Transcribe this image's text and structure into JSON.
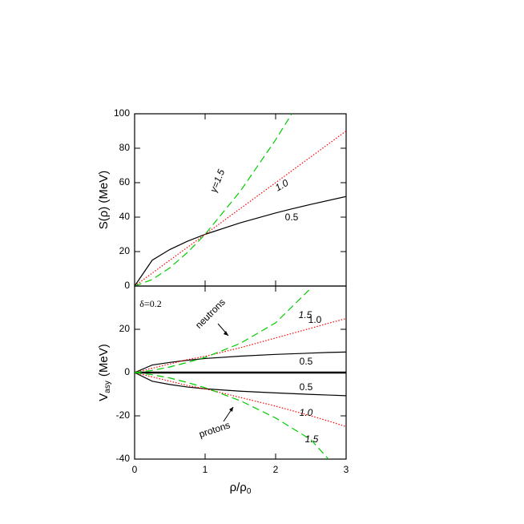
{
  "chart_data": [
    {
      "type": "line",
      "ylabel": "S(ρ) (MeV)",
      "x": [
        0,
        0.25,
        0.5,
        0.75,
        1,
        1.5,
        2,
        2.23,
        2.5,
        3
      ],
      "xlim": [
        0,
        3
      ],
      "xticks": [
        0,
        1,
        2,
        3
      ],
      "ylim": [
        0,
        100
      ],
      "yticks": [
        0,
        20,
        40,
        60,
        80,
        100
      ],
      "series": [
        {
          "color": "#000000",
          "style": "solid",
          "values": [
            0,
            15,
            21.2,
            26,
            30,
            36.7,
            42.4,
            44.8,
            47.4,
            52
          ]
        },
        {
          "color": "#ff0000",
          "style": "dotted",
          "values": [
            0,
            7.5,
            15,
            22.5,
            30,
            45,
            60,
            66.9,
            75,
            90
          ]
        },
        {
          "color": "#00cc00",
          "style": "dashed",
          "values": [
            0,
            3.75,
            10.6,
            19.5,
            30,
            55.1,
            84.9,
            100,
            null,
            null
          ]
        }
      ],
      "annotations": [
        "γ=1.5",
        "1.0",
        "0.5"
      ]
    },
    {
      "type": "line",
      "ylabel": "V",
      "ylabel_sub": "asy",
      "ylabel_unit": "(MeV)",
      "xlabel": "ρ/ρ",
      "xlabel_sub": "0",
      "x": [
        0,
        0.25,
        0.5,
        0.75,
        1,
        1.5,
        2,
        2.5,
        2.75,
        3
      ],
      "xlim": [
        0,
        3
      ],
      "xticks": [
        0,
        1,
        2,
        3
      ],
      "ylim": [
        -40,
        40
      ],
      "yticks": [
        -40,
        -20,
        0,
        20
      ],
      "series": [
        {
          "color": "#000000",
          "style": "solid",
          "values": [
            0,
            3.5,
            4.7,
            5.7,
            6.5,
            7.6,
            8.4,
            9.0,
            9.3,
            9.5
          ]
        },
        {
          "color": "#ff0000",
          "style": "dotted",
          "values": [
            0,
            2,
            4,
            6,
            7.5,
            11.5,
            16,
            20.5,
            22.8,
            25
          ]
        },
        {
          "color": "#00cc00",
          "style": "dashed",
          "values": [
            0,
            1,
            2.6,
            4.7,
            7,
            13.5,
            23,
            39,
            null,
            null
          ]
        },
        {
          "color": "#000000",
          "style": "solid",
          "values": [
            0,
            -4,
            -5.5,
            -6.7,
            -7.5,
            -8.6,
            -9.4,
            -10.1,
            -10.4,
            -10.7
          ]
        },
        {
          "color": "#ff0000",
          "style": "dotted",
          "values": [
            0,
            -2,
            -4,
            -6,
            -7.5,
            -11.5,
            -15.5,
            -20,
            -22.4,
            -25
          ]
        },
        {
          "color": "#00cc00",
          "style": "dashed",
          "values": [
            0,
            -1,
            -2.5,
            -4.6,
            -7,
            -13,
            -21,
            -31,
            -40,
            null
          ]
        }
      ],
      "annotations": [
        "δ=0.2",
        "neutrons",
        "protons",
        "1.5",
        "1.0",
        "0.5",
        "0.5",
        "1.0",
        "1.5"
      ]
    }
  ]
}
